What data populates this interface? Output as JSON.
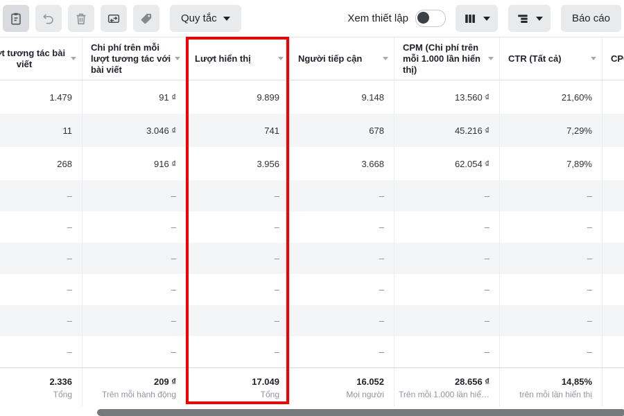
{
  "toolbar": {
    "icon_buttons": [
      {
        "icon": "clipboard-icon"
      },
      {
        "icon": "undo-icon"
      },
      {
        "icon": "trash-icon"
      },
      {
        "icon": "ab-test-icon"
      },
      {
        "icon": "tag-icon"
      }
    ],
    "rules_button_label": "Quy tắc",
    "view_setup_label": "Xem thiết lập",
    "view_setup_toggle_state": "off",
    "columns_button_icon": "columns-icon",
    "breakdown_button_icon": "breakdown-icon",
    "report_button_label": "Báo cáo"
  },
  "table": {
    "columns": [
      {
        "label": "Lượt tương tác bài viết"
      },
      {
        "label": "Chi phí trên mỗi lượt tương tác với bài viết"
      },
      {
        "label": "Lượt hiển thị"
      },
      {
        "label": "Người tiếp cận"
      },
      {
        "label": "CPM (Chi phí trên mỗi 1.000 lần hiển thị)"
      },
      {
        "label": "CTR (Tất cả)"
      },
      {
        "label": "CPC"
      }
    ],
    "rows": [
      [
        "1.479",
        "91 ₫",
        "9.899",
        "9.148",
        "13.560 ₫",
        "21,60%",
        ""
      ],
      [
        "11",
        "3.046 ₫",
        "741",
        "678",
        "45.216 ₫",
        "7,29%",
        ""
      ],
      [
        "268",
        "916 ₫",
        "3.956",
        "3.668",
        "62.054 ₫",
        "7,89%",
        ""
      ],
      [
        "–",
        "–",
        "–",
        "–",
        "–",
        "–",
        "–"
      ],
      [
        "–",
        "–",
        "–",
        "–",
        "–",
        "–",
        "–"
      ],
      [
        "–",
        "–",
        "–",
        "–",
        "–",
        "–",
        "–"
      ],
      [
        "–",
        "–",
        "–",
        "–",
        "–",
        "–",
        "–"
      ],
      [
        "–",
        "–",
        "–",
        "–",
        "–",
        "–",
        "–"
      ],
      [
        "–",
        "–",
        "–",
        "–",
        "–",
        "–",
        "–"
      ]
    ],
    "totals": [
      {
        "value": "2.336",
        "label": "Tổng"
      },
      {
        "value": "209 ₫",
        "label": "Trên mỗi hành động"
      },
      {
        "value": "17.049",
        "label": "Tổng"
      },
      {
        "value": "16.052",
        "label": "Mọi người"
      },
      {
        "value": "28.656 ₫",
        "label": "Trên mỗi 1.000 lần hiể…"
      },
      {
        "value": "14,85%",
        "label": "trên mỗi lần hiển thị"
      },
      {
        "value": "",
        "label": ""
      }
    ]
  },
  "highlight": {
    "highlighted_column": "Lượt hiển thị",
    "color": "#f50000"
  }
}
